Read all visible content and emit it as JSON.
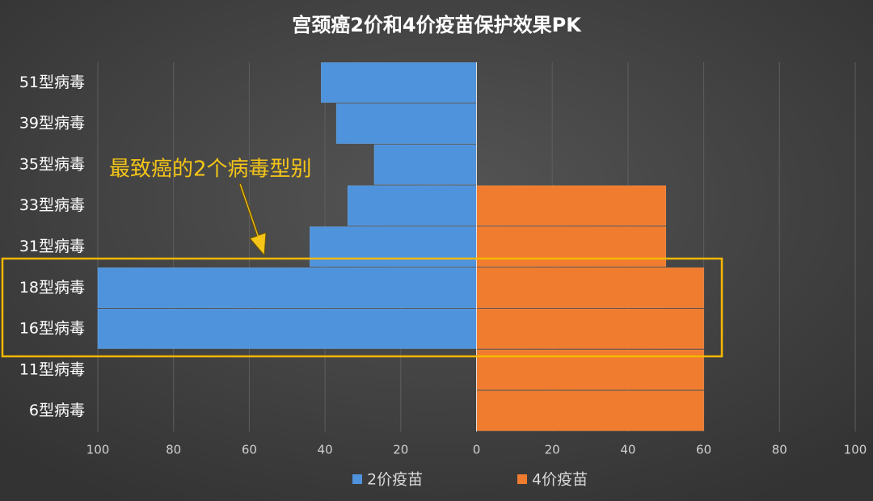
{
  "chart_data": {
    "type": "butterfly-bar",
    "title": "宫颈癌2价和4价疫苗保护效果PK",
    "categories": [
      "51型病毒",
      "39型病毒",
      "35型病毒",
      "33型病毒",
      "31型病毒",
      "18型病毒",
      "16型病毒",
      "11型病毒",
      "6型病毒"
    ],
    "series": [
      {
        "name": "2价疫苗",
        "color": "#4f93dc",
        "values": [
          -41,
          -37,
          -27,
          -34,
          -44,
          -100,
          -100,
          0,
          0
        ]
      },
      {
        "name": "4价疫苗",
        "color": "#f07c2f",
        "values": [
          0,
          0,
          0,
          50,
          50,
          60,
          60,
          60,
          60
        ]
      }
    ],
    "xlim": [
      -100,
      100
    ],
    "xticks": [
      {
        "value": -100,
        "label": "100"
      },
      {
        "value": -80,
        "label": "80"
      },
      {
        "value": -60,
        "label": "60"
      },
      {
        "value": -40,
        "label": "40"
      },
      {
        "value": -20,
        "label": "20"
      },
      0,
      20,
      40,
      60,
      80,
      100
    ],
    "grid": true,
    "legend": "bottom",
    "annotation": "最致癌的2个病毒型别"
  }
}
